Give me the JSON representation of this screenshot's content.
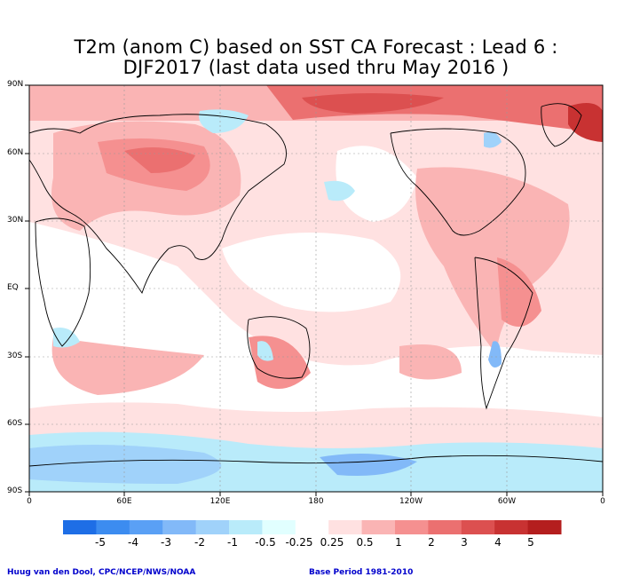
{
  "title_line1": "T2m (anom C) based on SST CA Forecast : Lead 6 :",
  "title_line2": "DJF2017 (last data used thru May 2016 )",
  "lat_labels": [
    "90N",
    "60N",
    "30N",
    "EQ",
    "30S",
    "60S",
    "90S"
  ],
  "lon_labels": [
    "0",
    "60E",
    "120E",
    "180",
    "120W",
    "60W",
    "0"
  ],
  "legend": {
    "labels": [
      "-5",
      "-4",
      "-3",
      "-2",
      "-1",
      "-0.5",
      "-0.25",
      "0.25",
      "0.5",
      "1",
      "2",
      "3",
      "4",
      "5"
    ],
    "colors": [
      "#1e6ee6",
      "#3c8cf0",
      "#5aa0f5",
      "#82b9f8",
      "#a0d2fa",
      "#b9ebfa",
      "#e1ffff",
      "#ffffff",
      "#ffe1e1",
      "#fab4b4",
      "#f59090",
      "#eb7070",
      "#dc5050",
      "#c83232",
      "#b41e1e"
    ]
  },
  "footer_left": "Huug van den Dool, CPC/NCEP/NWS/NOAA",
  "footer_right": "Base Period 1981-2010",
  "colors": {
    "land_outline": "#000000",
    "grid": "#9a9a9a",
    "contour": "#444444"
  }
}
